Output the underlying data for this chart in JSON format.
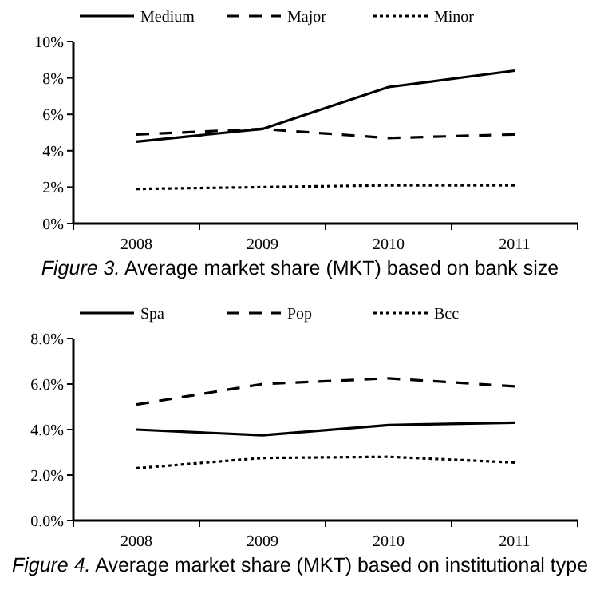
{
  "chart_data": [
    {
      "type": "line",
      "title": "Figure 3. Average market share (MKT) based on bank size",
      "categories": [
        "2008",
        "2009",
        "2010",
        "2011"
      ],
      "ylim": [
        0,
        10
      ],
      "yticks": [
        {
          "value": 0,
          "label": "0%"
        },
        {
          "value": 2,
          "label": "2%"
        },
        {
          "value": 4,
          "label": "4%"
        },
        {
          "value": 6,
          "label": "6%"
        },
        {
          "value": 8,
          "label": "8%"
        },
        {
          "value": 10,
          "label": "10%"
        }
      ],
      "legend": "top",
      "marker": "none",
      "series": [
        {
          "name": "Medium",
          "color": "#000000",
          "line_style": "solid",
          "values": [
            4.5,
            5.2,
            7.5,
            8.4
          ]
        },
        {
          "name": "Major",
          "color": "#000000",
          "line_style": "dashed",
          "values": [
            4.9,
            5.2,
            4.7,
            4.9
          ]
        },
        {
          "name": "Minor",
          "color": "#000000",
          "line_style": "dotted",
          "values": [
            1.9,
            2.0,
            2.1,
            2.1
          ]
        }
      ]
    },
    {
      "type": "line",
      "title": "Figure 4. Average market share (MKT) based on institutional type",
      "categories": [
        "2008",
        "2009",
        "2010",
        "2011"
      ],
      "ylim": [
        0,
        8
      ],
      "yticks": [
        {
          "value": 0,
          "label": "0.0%"
        },
        {
          "value": 2,
          "label": "2.0%"
        },
        {
          "value": 4,
          "label": "4.0%"
        },
        {
          "value": 6,
          "label": "6.0%"
        },
        {
          "value": 8,
          "label": "8.0%"
        }
      ],
      "legend": "top",
      "marker": "none",
      "series": [
        {
          "name": "Spa",
          "color": "#000000",
          "line_style": "solid",
          "values": [
            4.0,
            3.75,
            4.2,
            4.3
          ]
        },
        {
          "name": "Pop",
          "color": "#000000",
          "line_style": "dashed",
          "values": [
            5.1,
            6.0,
            6.25,
            5.9
          ]
        },
        {
          "name": "Bcc",
          "color": "#000000",
          "line_style": "dotted",
          "values": [
            2.3,
            2.75,
            2.8,
            2.55
          ]
        }
      ]
    }
  ]
}
